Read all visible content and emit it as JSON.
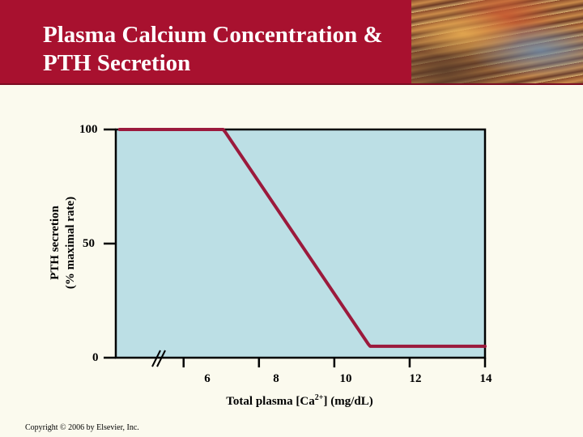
{
  "slide": {
    "title_line1": "Plasma Calcium Concentration &",
    "title_line2": "PTH Secretion",
    "copyright": "Copyright © 2006 by Elsevier, Inc."
  },
  "colors": {
    "header": "#a8112f",
    "background": "#fbfaee",
    "plot_area": "#bcdfe5",
    "curve": "#9b1a3c"
  },
  "chart_data": {
    "type": "line",
    "title": "",
    "xlabel": "Total plasma [Ca",
    "xlabel_sup": "2+",
    "xlabel_suffix": "] (mg/dL)",
    "ylabel_line1": "PTH secretion",
    "ylabel_line2": "(% maximal rate)",
    "x_ticks": [
      "6",
      "8",
      "10",
      "12",
      "14"
    ],
    "y_ticks": [
      "100",
      "50",
      "0"
    ],
    "xlim": [
      4.2,
      14
    ],
    "ylim": [
      0,
      100
    ],
    "axis_break": true,
    "grid": false,
    "series": [
      {
        "x": [
          4.3,
          7.0,
          7.05,
          7.1,
          10.9,
          10.95,
          11.0,
          14.0
        ],
        "y": [
          100,
          100,
          100,
          99,
          6,
          5,
          5,
          5
        ]
      }
    ]
  }
}
